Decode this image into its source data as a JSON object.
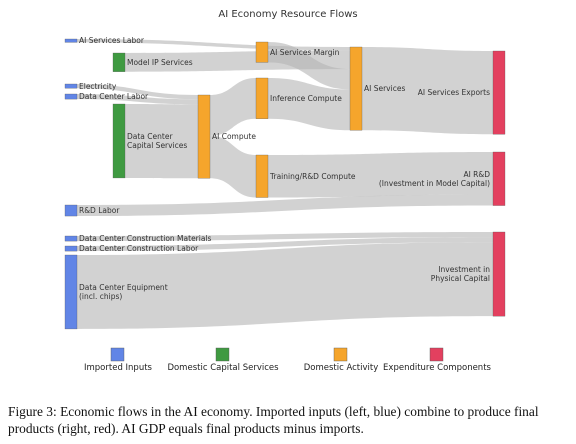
{
  "chart_data": {
    "type": "sankey",
    "title": "AI Economy Resource Flows",
    "legend": [
      {
        "name": "Imported Inputs",
        "color": "#6185e6"
      },
      {
        "name": "Domestic Capital Services",
        "color": "#3f9a41"
      },
      {
        "name": "Domestic Activity",
        "color": "#f5a52c"
      },
      {
        "name": "Expenditure Components",
        "color": "#e3405f"
      }
    ],
    "nodes": [
      {
        "name": "AI Services Labor",
        "group": 0
      },
      {
        "name": "Electricity",
        "group": 0
      },
      {
        "name": "Data Center Labor",
        "group": 0
      },
      {
        "name": "R&D Labor",
        "group": 0
      },
      {
        "name": "Data Center Construction Materials",
        "group": 0
      },
      {
        "name": "Data Center Construction Labor",
        "group": 0
      },
      {
        "name": "Data Center Equipment\n(incl. chips)",
        "group": 0
      },
      {
        "name": "Model IP Services",
        "group": 1
      },
      {
        "name": "Data Center\nCapital Services",
        "group": 1
      },
      {
        "name": "AI Compute",
        "group": 2
      },
      {
        "name": "AI Services Margin",
        "group": 2
      },
      {
        "name": "Inference Compute",
        "group": 2
      },
      {
        "name": "Training/R&D Compute",
        "group": 2
      },
      {
        "name": "AI Services",
        "group": 2
      },
      {
        "name": "AI Services Exports",
        "group": 3
      },
      {
        "name": "AI R&D\n(Investment in Model Capital)",
        "group": 3
      },
      {
        "name": "Investment in\nPhysical Capital",
        "group": 3
      }
    ],
    "links": [
      {
        "source": 0,
        "target": 13,
        "value": 4
      },
      {
        "source": 7,
        "target": 13,
        "value": 22
      },
      {
        "source": 10,
        "target": 13,
        "value": 24
      },
      {
        "source": 11,
        "target": 13,
        "value": 48
      },
      {
        "source": 13,
        "target": 14,
        "value": 98
      },
      {
        "source": 1,
        "target": 9,
        "value": 5
      },
      {
        "source": 2,
        "target": 9,
        "value": 6
      },
      {
        "source": 8,
        "target": 9,
        "value": 87
      },
      {
        "source": 9,
        "target": 11,
        "value": 48
      },
      {
        "source": 9,
        "target": 12,
        "value": 50
      },
      {
        "source": 12,
        "target": 15,
        "value": 50
      },
      {
        "source": 3,
        "target": 15,
        "value": 13
      },
      {
        "source": 4,
        "target": 16,
        "value": 6
      },
      {
        "source": 5,
        "target": 16,
        "value": 6
      },
      {
        "source": 6,
        "target": 16,
        "value": 87
      }
    ]
  },
  "caption": "Figure 3: Economic flows in the AI economy. Imported inputs (left, blue) combine to produce final products (right, red). AI GDP equals final products minus imports."
}
